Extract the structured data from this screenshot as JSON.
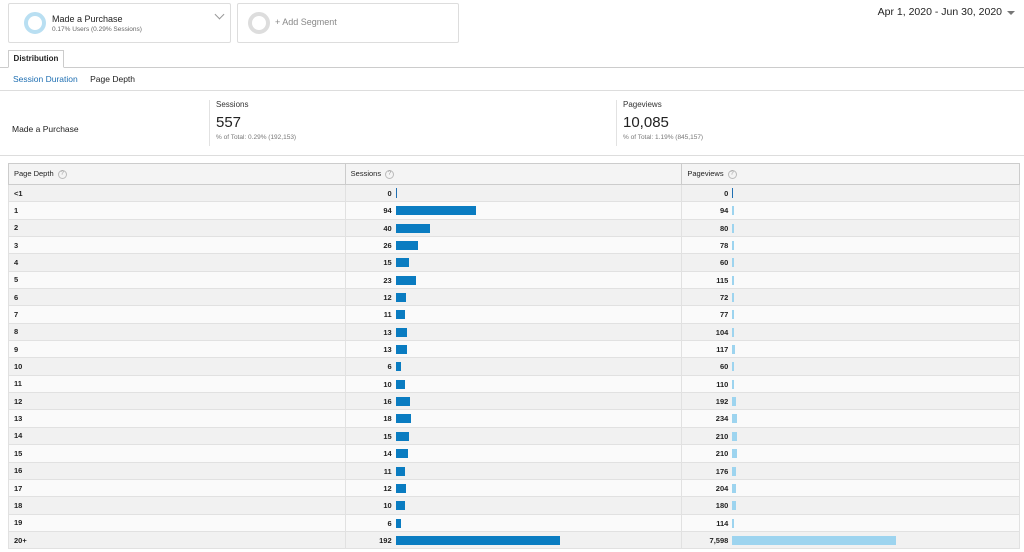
{
  "segments": [
    {
      "title": "Made a Purchase",
      "subtitle": "0.17% Users (0.29% Sessions)"
    },
    {
      "title": "+ Add Segment"
    }
  ],
  "date_range": "Apr 1, 2020 - Jun 30, 2020",
  "tabs": [
    "Distribution"
  ],
  "subtabs": [
    "Session Duration",
    "Page Depth"
  ],
  "summary": {
    "segment": "Made a Purchase",
    "sessions": {
      "label": "Sessions",
      "value": "557",
      "pct": "% of Total: 0.29% (192,153)"
    },
    "pageviews": {
      "label": "Pageviews",
      "value": "10,085",
      "pct": "% of Total: 1.19% (845,157)"
    }
  },
  "table": {
    "headers": [
      "Page Depth",
      "Sessions",
      "Pageviews"
    ],
    "help_glyph": "?",
    "rows": [
      {
        "depth": "<1",
        "sessions": "0",
        "pageviews": "0",
        "s": 0,
        "p": 0
      },
      {
        "depth": "1",
        "sessions": "94",
        "pageviews": "94",
        "s": 94,
        "p": 94
      },
      {
        "depth": "2",
        "sessions": "40",
        "pageviews": "80",
        "s": 40,
        "p": 80
      },
      {
        "depth": "3",
        "sessions": "26",
        "pageviews": "78",
        "s": 26,
        "p": 78
      },
      {
        "depth": "4",
        "sessions": "15",
        "pageviews": "60",
        "s": 15,
        "p": 60
      },
      {
        "depth": "5",
        "sessions": "23",
        "pageviews": "115",
        "s": 23,
        "p": 115
      },
      {
        "depth": "6",
        "sessions": "12",
        "pageviews": "72",
        "s": 12,
        "p": 72
      },
      {
        "depth": "7",
        "sessions": "11",
        "pageviews": "77",
        "s": 11,
        "p": 77
      },
      {
        "depth": "8",
        "sessions": "13",
        "pageviews": "104",
        "s": 13,
        "p": 104
      },
      {
        "depth": "9",
        "sessions": "13",
        "pageviews": "117",
        "s": 13,
        "p": 117
      },
      {
        "depth": "10",
        "sessions": "6",
        "pageviews": "60",
        "s": 6,
        "p": 60
      },
      {
        "depth": "11",
        "sessions": "10",
        "pageviews": "110",
        "s": 10,
        "p": 110
      },
      {
        "depth": "12",
        "sessions": "16",
        "pageviews": "192",
        "s": 16,
        "p": 192
      },
      {
        "depth": "13",
        "sessions": "18",
        "pageviews": "234",
        "s": 18,
        "p": 234
      },
      {
        "depth": "14",
        "sessions": "15",
        "pageviews": "210",
        "s": 15,
        "p": 210
      },
      {
        "depth": "15",
        "sessions": "14",
        "pageviews": "210",
        "s": 14,
        "p": 210
      },
      {
        "depth": "16",
        "sessions": "11",
        "pageviews": "176",
        "s": 11,
        "p": 176
      },
      {
        "depth": "17",
        "sessions": "12",
        "pageviews": "204",
        "s": 12,
        "p": 204
      },
      {
        "depth": "18",
        "sessions": "10",
        "pageviews": "180",
        "s": 10,
        "p": 180
      },
      {
        "depth": "19",
        "sessions": "6",
        "pageviews": "114",
        "s": 6,
        "p": 114
      },
      {
        "depth": "20+",
        "sessions": "192",
        "pageviews": "7,598",
        "s": 192,
        "p": 7598
      }
    ]
  },
  "colors": {
    "sessions_bar": "#0a7cc1",
    "pageviews_bar": "#9dd4ef",
    "link": "#1f6fb2"
  }
}
